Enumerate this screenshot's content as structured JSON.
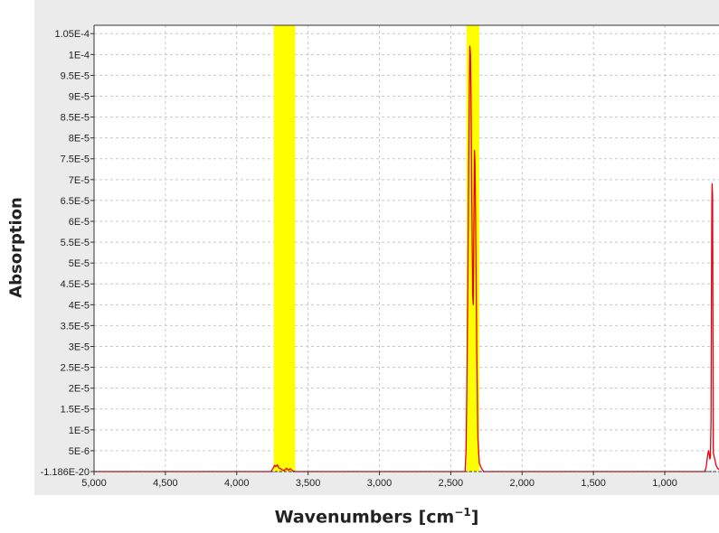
{
  "chart_data": {
    "type": "line",
    "title": "",
    "ylabel": "Absorption",
    "xlabel": "Wavenumbers [cm",
    "xlabel_sup": "−1",
    "xlabel_close": "]",
    "x_reversed": true,
    "xlim": [
      5000,
      620
    ],
    "ylim": [
      -1.186e-20,
      0.000107
    ],
    "grid": true,
    "x_ticks": [
      5000,
      4500,
      4000,
      3500,
      3000,
      2500,
      2000,
      1500,
      1000
    ],
    "x_tick_labels": [
      "5,000",
      "4,500",
      "4,000",
      "3,500",
      "3,000",
      "2,500",
      "2,000",
      "1,500",
      "1,000"
    ],
    "y_ticks": [
      -1.186e-20,
      5e-06,
      1e-05,
      1.5e-05,
      2e-05,
      2.5e-05,
      3e-05,
      3.5e-05,
      4e-05,
      4.5e-05,
      5e-05,
      5.5e-05,
      6e-05,
      6.5e-05,
      7e-05,
      7.5e-05,
      8e-05,
      8.5e-05,
      9e-05,
      9.5e-05,
      0.0001,
      0.000105
    ],
    "y_tick_labels": [
      "-1.186E-20",
      "5E-6",
      "1E-5",
      "1.5E-5",
      "2E-5",
      "2.5E-5",
      "3E-5",
      "3.5E-5",
      "4E-5",
      "4.5E-5",
      "5E-5",
      "5.5E-5",
      "6E-5",
      "6.5E-5",
      "7E-5",
      "7.5E-5",
      "8E-5",
      "8.5E-5",
      "9E-5",
      "9.5E-5",
      "1E-4",
      "1.05E-4"
    ],
    "highlight_regions": [
      {
        "x_from": 3740,
        "x_to": 3590,
        "color": "#ffff00"
      },
      {
        "x_from": 2390,
        "x_to": 2300,
        "color": "#ffff00"
      }
    ],
    "series": [
      {
        "color": "#e8000b",
        "points": [
          [
            5000,
            0
          ],
          [
            3760,
            0
          ],
          [
            3745,
            8e-07
          ],
          [
            3735,
            1.5e-06
          ],
          [
            3725,
            1.2e-06
          ],
          [
            3715,
            1.6e-06
          ],
          [
            3705,
            9e-07
          ],
          [
            3690,
            6e-07
          ],
          [
            3670,
            2e-07
          ],
          [
            3650,
            8e-07
          ],
          [
            3640,
            3e-07
          ],
          [
            3625,
            7e-07
          ],
          [
            3610,
            2e-07
          ],
          [
            3590,
            0
          ],
          [
            2400,
            0
          ],
          [
            2393,
            5e-06
          ],
          [
            2387,
            2e-05
          ],
          [
            2380,
            4.5e-05
          ],
          [
            2375,
            7e-05
          ],
          [
            2370,
            9e-05
          ],
          [
            2366,
            0.000102
          ],
          [
            2362,
            0.0001
          ],
          [
            2358,
            9e-05
          ],
          [
            2354,
            7.2e-05
          ],
          [
            2350,
            5.5e-05
          ],
          [
            2346,
            4.2e-05
          ],
          [
            2342,
            4e-05
          ],
          [
            2338,
            6e-05
          ],
          [
            2334,
            7.7e-05
          ],
          [
            2330,
            7.4e-05
          ],
          [
            2326,
            6e-05
          ],
          [
            2322,
            4.5e-05
          ],
          [
            2318,
            3e-05
          ],
          [
            2314,
            1.8e-05
          ],
          [
            2310,
            8e-06
          ],
          [
            2300,
            2e-06
          ],
          [
            2285,
            8e-07
          ],
          [
            2270,
            0
          ],
          [
            720,
            0
          ],
          [
            710,
            1e-06
          ],
          [
            703,
            3e-06
          ],
          [
            697,
            4.5e-06
          ],
          [
            692,
            5e-06
          ],
          [
            688,
            4e-06
          ],
          [
            684,
            3e-06
          ],
          [
            680,
            3.5e-06
          ],
          [
            676,
            1.2e-05
          ],
          [
            673,
            4e-05
          ],
          [
            670,
            6.5e-05
          ],
          [
            668,
            6.9e-05
          ],
          [
            665,
            6.6e-05
          ],
          [
            660,
            4.5e-06
          ],
          [
            650,
            3e-06
          ],
          [
            640,
            1.5e-06
          ],
          [
            630,
            8e-07
          ],
          [
            620,
            5e-07
          ]
        ]
      }
    ]
  }
}
